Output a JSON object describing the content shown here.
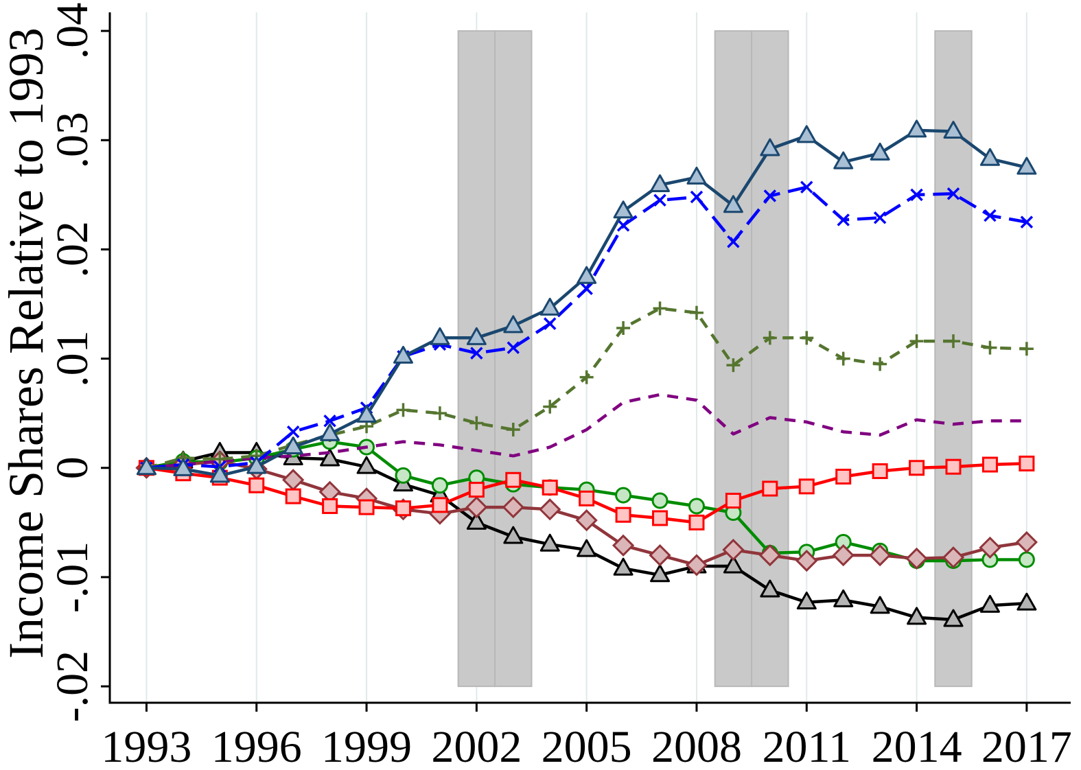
{
  "chart_data": {
    "type": "line",
    "ylabel": "Income Shares Relative to 1993",
    "x": [
      1993,
      1994,
      1995,
      1996,
      1997,
      1998,
      1999,
      2000,
      2001,
      2002,
      2003,
      2004,
      2005,
      2006,
      2007,
      2008,
      2009,
      2010,
      2011,
      2012,
      2013,
      2014,
      2015,
      2016,
      2017
    ],
    "xlim": [
      1992,
      2018.2
    ],
    "ylim": [
      -0.0215,
      0.0417
    ],
    "xticks": [
      1993,
      1996,
      1999,
      2002,
      2005,
      2008,
      2011,
      2014,
      2017
    ],
    "xticklabels": [
      "1993",
      "1996",
      "1999",
      "2002",
      "2005",
      "2008",
      "2011",
      "2014",
      "2017"
    ],
    "yticks": [
      -0.02,
      -0.01,
      0,
      0.01,
      0.02,
      0.03,
      0.04
    ],
    "yticklabels": [
      "-.02",
      "-.01",
      "0",
      ".01",
      ".02",
      ".03",
      ".04"
    ],
    "grid_x": true,
    "grid_y": false,
    "shaded_periods": [
      [
        2001.5,
        2002.5
      ],
      [
        2002.5,
        2003.5
      ],
      [
        2008.5,
        2009.5
      ],
      [
        2009.5,
        2010.5
      ],
      [
        2014.5,
        2015.5
      ]
    ],
    "shaded_yrange": [
      -0.02,
      0.04
    ],
    "series": [
      {
        "line_color": "#000000",
        "marker": "triangle",
        "marker_fill": "#b4b4b4",
        "line_style": "solid",
        "values": [
          0,
          0.0006,
          0.0014,
          0.0014,
          0.0009,
          0.0008,
          0.0001,
          -0.0015,
          -0.0025,
          -0.005,
          -0.0063,
          -0.007,
          -0.0075,
          -0.0092,
          -0.0098,
          -0.009,
          -0.009,
          -0.0112,
          -0.0123,
          -0.0121,
          -0.0127,
          -0.0137,
          -0.0139,
          -0.0126,
          -0.0124
        ]
      },
      {
        "line_color": "#008c00",
        "marker": "circle",
        "marker_fill": "#c6e6c6",
        "line_style": "solid",
        "values": [
          0,
          0.0006,
          0.0005,
          0.0009,
          0.0017,
          0.0024,
          0.0019,
          -0.0007,
          -0.0016,
          -0.0009,
          -0.0015,
          -0.0018,
          -0.002,
          -0.0025,
          -0.003,
          -0.0035,
          -0.0041,
          -0.0078,
          -0.0077,
          -0.0068,
          -0.0076,
          -0.0085,
          -0.0085,
          -0.0084,
          -0.0084
        ]
      },
      {
        "line_color": "#90353b",
        "marker": "diamond",
        "marker_fill": "#dbb6b8",
        "line_style": "solid",
        "values": [
          0,
          0.0003,
          0.0006,
          -0.0001,
          -0.0011,
          -0.0022,
          -0.0028,
          -0.0038,
          -0.0042,
          -0.0036,
          -0.0036,
          -0.0038,
          -0.0048,
          -0.0071,
          -0.008,
          -0.0089,
          -0.0075,
          -0.008,
          -0.0085,
          -0.008,
          -0.008,
          -0.0083,
          -0.0082,
          -0.0073,
          -0.0068
        ]
      },
      {
        "line_color": "#ff0000",
        "marker": "square",
        "marker_fill": "#ffc4c4",
        "line_style": "solid",
        "values": [
          0,
          -0.0005,
          -0.0009,
          -0.0016,
          -0.0026,
          -0.0035,
          -0.0036,
          -0.0037,
          -0.0034,
          -0.002,
          -0.0011,
          -0.0018,
          -0.0028,
          -0.0043,
          -0.0046,
          -0.005,
          -0.003,
          -0.0019,
          -0.0017,
          -0.0008,
          -0.0003,
          0.0,
          0.0001,
          0.0003,
          0.0004
        ]
      },
      {
        "line_color": "#800080",
        "marker": "none",
        "marker_fill": "#800080",
        "line_style": "dash",
        "values": [
          0,
          0.0003,
          0.0006,
          0.0009,
          0.0011,
          0.0014,
          0.0019,
          0.0024,
          0.0021,
          0.0016,
          0.0011,
          0.0019,
          0.0035,
          0.006,
          0.0067,
          0.0062,
          0.0031,
          0.0046,
          0.0042,
          0.0033,
          0.003,
          0.0044,
          0.004,
          0.0043,
          0.0043
        ]
      },
      {
        "line_color": "#55752f",
        "marker": "plus",
        "marker_fill": "#55752f",
        "line_style": "dash",
        "values": [
          0,
          0.0009,
          0.0008,
          0.0011,
          0.0021,
          0.003,
          0.0038,
          0.0053,
          0.005,
          0.0041,
          0.0035,
          0.0056,
          0.0083,
          0.0128,
          0.0146,
          0.0142,
          0.0094,
          0.0119,
          0.0119,
          0.01,
          0.0095,
          0.0116,
          0.0116,
          0.011,
          0.0109
        ]
      },
      {
        "line_color": "#0000ff",
        "marker": "x",
        "marker_fill": "#0000ff",
        "line_style": "long-dash",
        "values": [
          0,
          0.0003,
          0.0001,
          0.0005,
          0.0033,
          0.0043,
          0.0055,
          0.0102,
          0.0113,
          0.0105,
          0.011,
          0.0132,
          0.0164,
          0.0222,
          0.0245,
          0.0248,
          0.0207,
          0.0249,
          0.0257,
          0.0227,
          0.0229,
          0.025,
          0.0251,
          0.0231,
          0.0225
        ]
      },
      {
        "line_color": "#1a476f",
        "marker": "triangle",
        "marker_fill": "#a9bfd4",
        "line_style": "solid",
        "values": [
          0,
          -0.0001,
          -0.0007,
          0.0001,
          0.0019,
          0.0031,
          0.0048,
          0.0102,
          0.0119,
          0.0119,
          0.013,
          0.0146,
          0.0175,
          0.0235,
          0.0259,
          0.0266,
          0.024,
          0.0292,
          0.0304,
          0.028,
          0.0288,
          0.0309,
          0.0308,
          0.0283,
          0.0275
        ]
      }
    ]
  },
  "colors": {
    "background": "#ffffff",
    "grid": "#dfeaea",
    "band_fill": "#c9c9c9",
    "band_edge": "#b8b8b8",
    "axis": "#000000"
  }
}
